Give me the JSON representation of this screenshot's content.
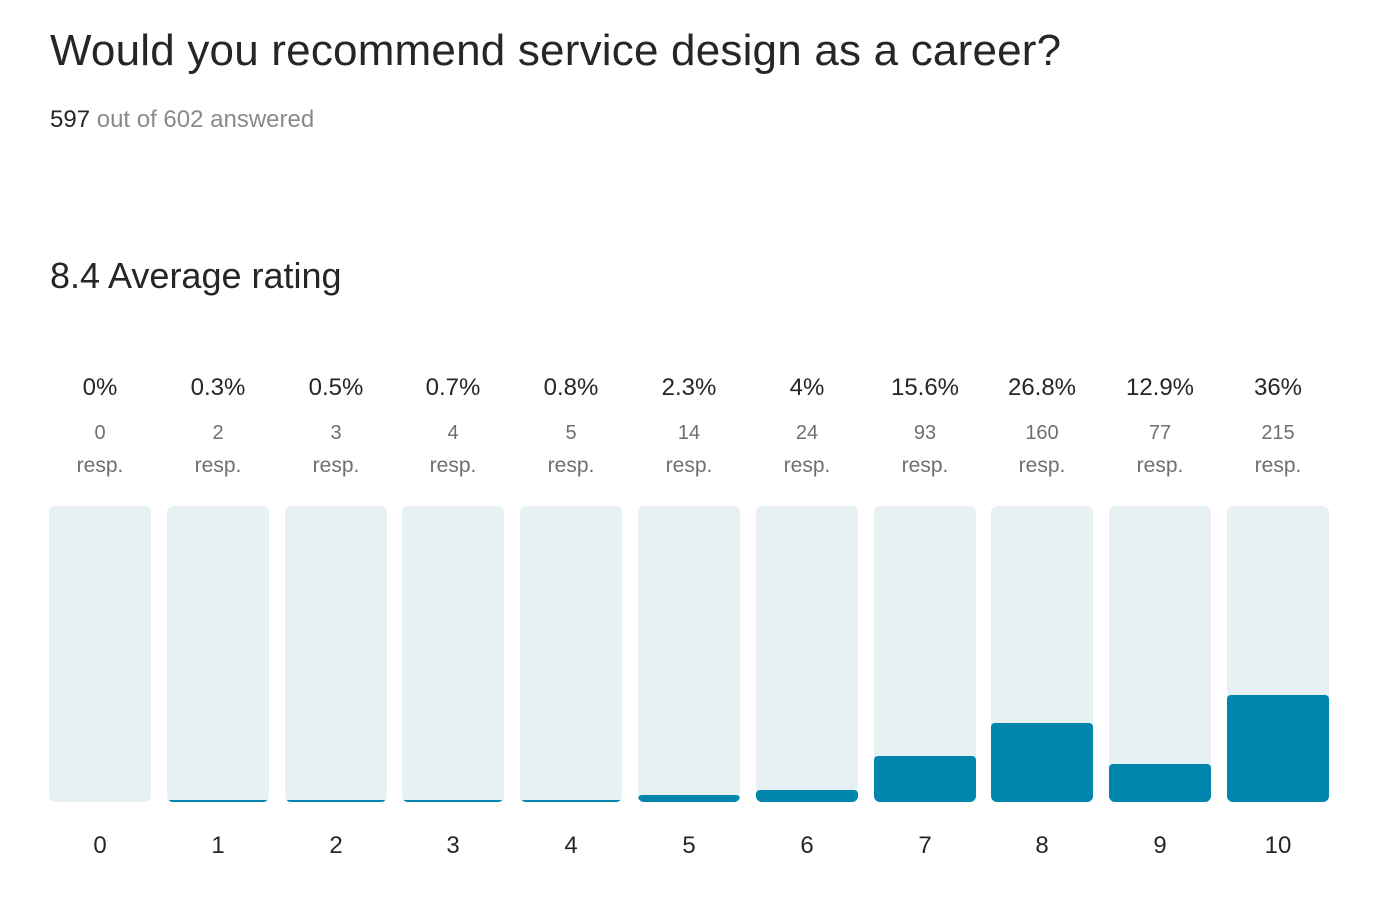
{
  "header": {
    "question": "Would you recommend service design as a career?",
    "answered_count": "597",
    "answered_suffix": " out of 602 answered",
    "average_text": "8.4 Average rating"
  },
  "colors": {
    "bar_fill": "#0086ad",
    "bar_track": "#e7f1f4"
  },
  "chart_data": {
    "type": "bar",
    "title": "Would you recommend service design as a career?",
    "xlabel": "",
    "ylabel": "",
    "ylim": [
      0,
      100
    ],
    "resp_label": "resp.",
    "categories": [
      "0",
      "1",
      "2",
      "3",
      "4",
      "5",
      "6",
      "7",
      "8",
      "9",
      "10"
    ],
    "percent_labels": [
      "0%",
      "0.3%",
      "0.5%",
      "0.7%",
      "0.8%",
      "2.3%",
      "4%",
      "15.6%",
      "26.8%",
      "12.9%",
      "36%"
    ],
    "percent_values": [
      0,
      0.3,
      0.5,
      0.7,
      0.8,
      2.3,
      4,
      15.6,
      26.8,
      12.9,
      36
    ],
    "responses": [
      0,
      2,
      3,
      4,
      5,
      14,
      24,
      93,
      160,
      77,
      215
    ]
  }
}
